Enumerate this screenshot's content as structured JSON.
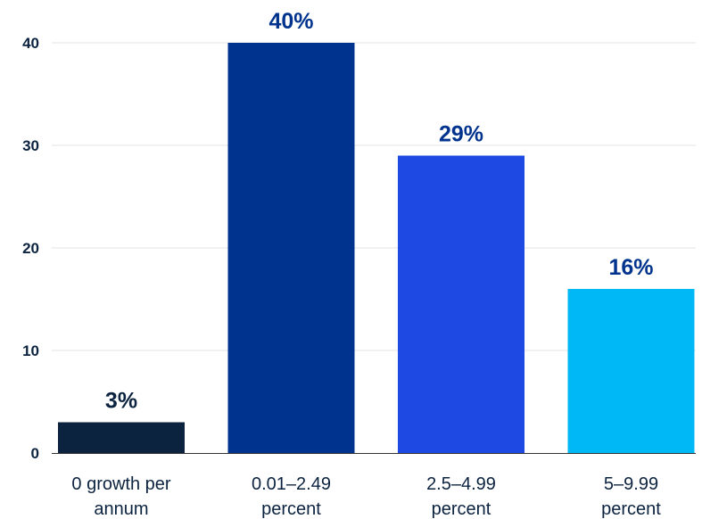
{
  "chart_data": {
    "type": "bar",
    "categories": [
      [
        "0 growth per",
        "annum"
      ],
      [
        "0.01–2.49",
        "percent"
      ],
      [
        "2.5–4.99",
        "percent"
      ],
      [
        "5–9.99",
        "percent"
      ]
    ],
    "values": [
      3,
      40,
      29,
      16
    ],
    "data_labels": [
      "3%",
      "40%",
      "29%",
      "16%"
    ],
    "bar_colors": [
      "#0c2340",
      "#00338d",
      "#1e49e2",
      "#00b8f5"
    ],
    "y_ticks": [
      0,
      10,
      20,
      30,
      40
    ],
    "ylim": [
      0,
      40
    ],
    "grid": true,
    "legend": "none"
  }
}
